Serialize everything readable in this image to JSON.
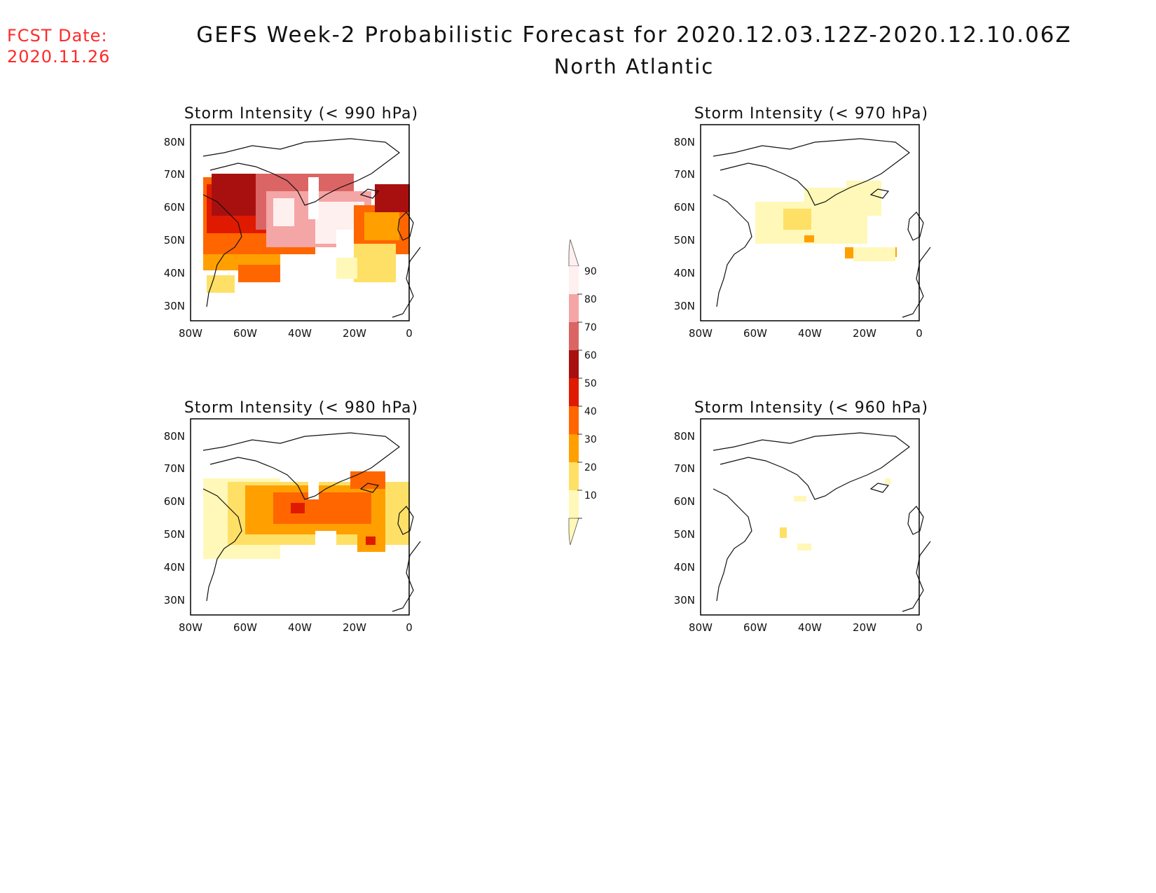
{
  "header": {
    "fcst_label": "FCST Date:",
    "fcst_date": "2020.11.26",
    "title": "GEFS Week-2 Probabilistic Forecast for 2020.12.03.12Z-2020.12.10.06Z",
    "region": "North Atlantic"
  },
  "axes": {
    "lat_labels": [
      "80N",
      "70N",
      "60N",
      "50N",
      "40N",
      "30N"
    ],
    "lon_labels": [
      "80W",
      "60W",
      "40W",
      "20W",
      "0"
    ]
  },
  "panels": [
    {
      "id": "p990",
      "title": "Storm Intensity (< 990 hPa)"
    },
    {
      "id": "p970",
      "title": "Storm Intensity (< 970 hPa)"
    },
    {
      "id": "p980",
      "title": "Storm Intensity (< 980 hPa)"
    },
    {
      "id": "p960",
      "title": "Storm Intensity (< 960 hPa)"
    }
  ],
  "colorbar": {
    "levels": [
      "90",
      "80",
      "70",
      "60",
      "50",
      "40",
      "30",
      "20",
      "10"
    ],
    "colors": [
      "#fff0f0",
      "#f4a5a5",
      "#db6464",
      "#a81010",
      "#e01a00",
      "#ff6600",
      "#ffa000",
      "#ffe066",
      "#fff8b8"
    ]
  },
  "colors": {
    "title_red": "#ff2a2a"
  }
}
